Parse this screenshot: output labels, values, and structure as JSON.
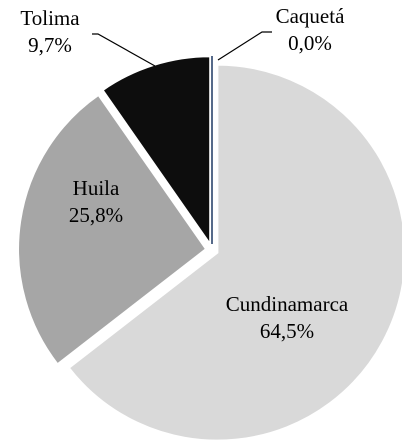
{
  "chart_data": {
    "type": "pie",
    "categories": [
      "Cundinamarca",
      "Huila",
      "Tolima",
      "Caquetá"
    ],
    "values": [
      64.5,
      25.8,
      9.7,
      0.0
    ],
    "value_labels": [
      "64,5%",
      "25,8%",
      "9,7%",
      "0,0%"
    ],
    "colors": [
      "#d9d9d9",
      "#a6a6a6",
      "#0d0d0d",
      "#1f3864"
    ]
  }
}
